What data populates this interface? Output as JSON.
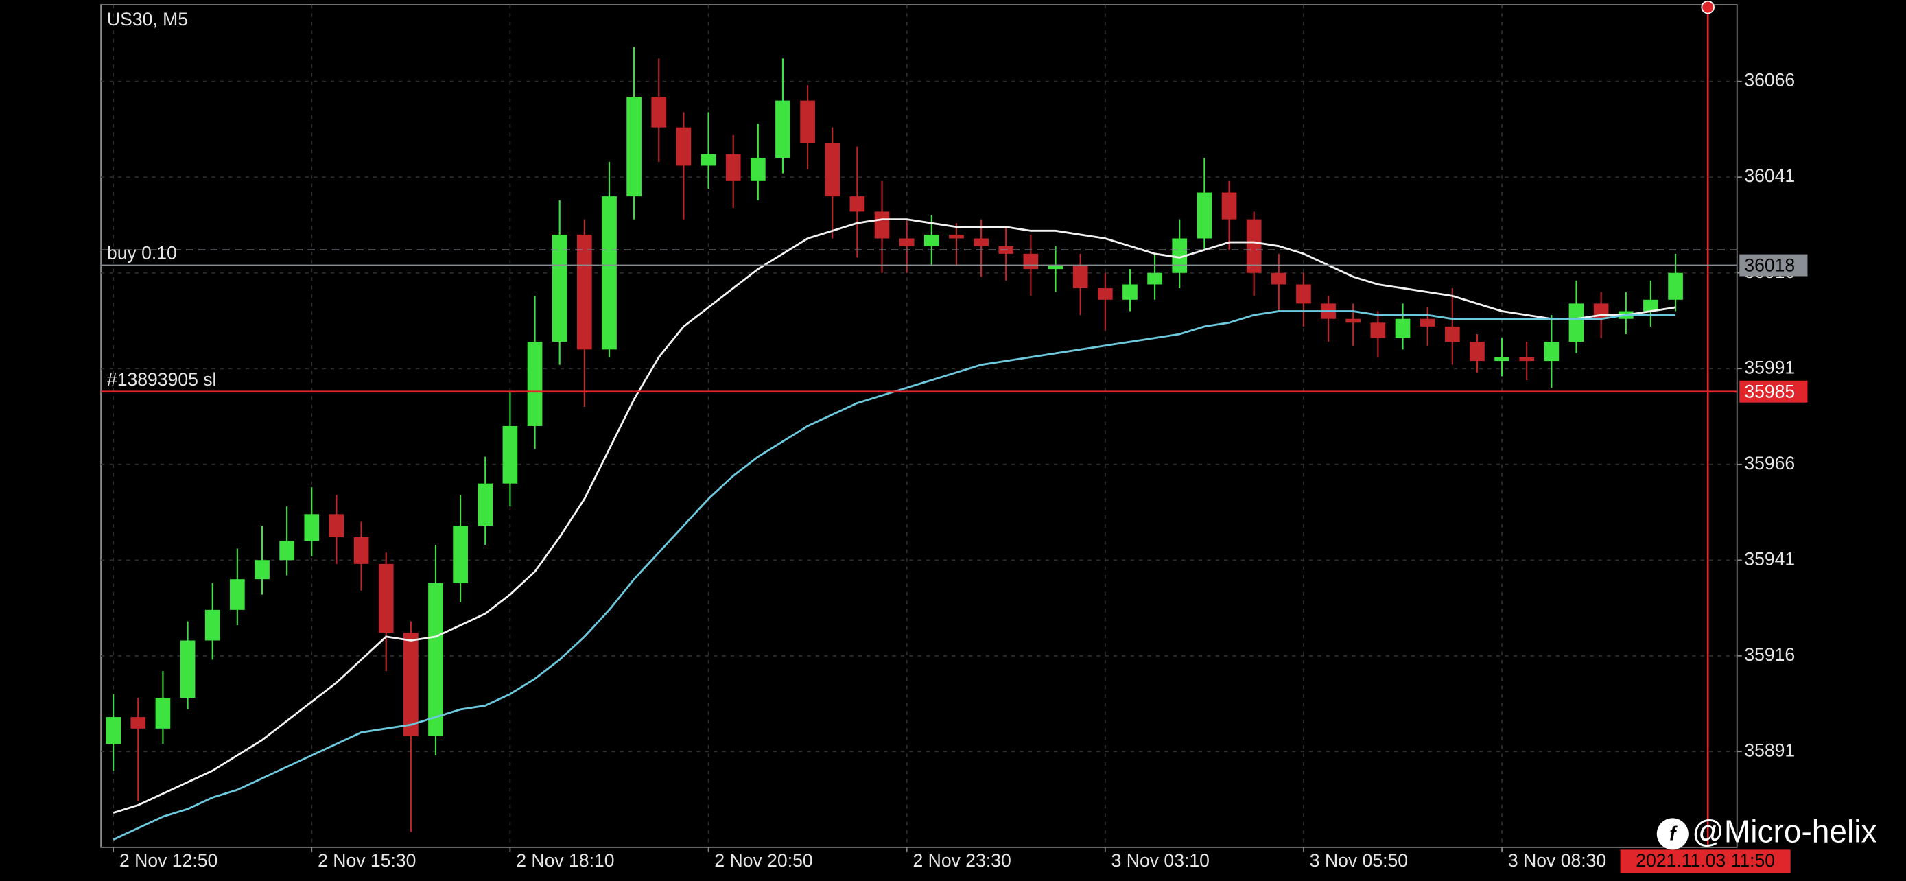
{
  "chart_data": {
    "type": "candlestick",
    "title": "US30, M5",
    "categories": [
      "2 Nov 12:50",
      null,
      null,
      null,
      null,
      null,
      null,
      null,
      "2 Nov 15:30",
      null,
      null,
      null,
      null,
      null,
      null,
      null,
      "2 Nov 18:10",
      null,
      null,
      null,
      null,
      null,
      null,
      null,
      "2 Nov 20:50",
      null,
      null,
      null,
      null,
      null,
      null,
      null,
      "2 Nov 23:30",
      null,
      null,
      null,
      null,
      null,
      null,
      null,
      "3 Nov 03:10",
      null,
      null,
      null,
      null,
      null,
      null,
      null,
      "3 Nov 05:50",
      null,
      null,
      null,
      null,
      null,
      null,
      null,
      "3 Nov 08:30",
      null,
      null,
      null,
      null,
      null,
      null,
      null
    ],
    "open": [
      35893,
      35900,
      35897,
      35905,
      35920,
      35928,
      35936,
      35941,
      35946,
      35953,
      35947,
      35940,
      35922,
      35895,
      35935,
      35950,
      35961,
      35976,
      35998,
      36026,
      35996,
      36036,
      36062,
      36054,
      36044,
      36047,
      36040,
      36046,
      36061,
      36050,
      36036,
      36032,
      36025,
      36023,
      36026,
      36025,
      36023,
      36021,
      36017,
      36018,
      36012,
      36009,
      36013,
      36016,
      36025,
      36037,
      36030,
      36016,
      36013,
      36008,
      36004,
      36003,
      35999,
      36004,
      36002,
      35998,
      35993,
      35994,
      35993,
      35998,
      36008,
      36004,
      36006,
      36009
    ],
    "high": [
      35906,
      35905,
      35912,
      35925,
      35935,
      35944,
      35950,
      35955,
      35960,
      35958,
      35951,
      35943,
      35925,
      35945,
      35958,
      35968,
      35985,
      36010,
      36035,
      36030,
      36045,
      36075,
      36072,
      36058,
      36058,
      36052,
      36055,
      36072,
      36065,
      36054,
      36049,
      36040,
      36030,
      36031,
      36029,
      36030,
      36028,
      36026,
      36023,
      36021,
      36016,
      36017,
      36021,
      36030,
      36046,
      36040,
      36032,
      36021,
      36016,
      36010,
      36008,
      36006,
      36008,
      36007,
      36012,
      36000,
      35999,
      35998,
      36005,
      36014,
      36011,
      36011,
      36014,
      36021
    ],
    "low": [
      35886,
      35878,
      35893,
      35902,
      35915,
      35924,
      35932,
      35937,
      35942,
      35940,
      35933,
      35912,
      35870,
      35890,
      35930,
      35945,
      35955,
      35970,
      35992,
      35981,
      35994,
      36030,
      36045,
      36030,
      36038,
      36033,
      36035,
      36042,
      36043,
      36025,
      36020,
      36016,
      36016,
      36018,
      36018,
      36015,
      36014,
      36010,
      36011,
      36005,
      36001,
      36006,
      36009,
      36012,
      36022,
      36022,
      36010,
      36006,
      36002,
      35998,
      35997,
      35994,
      35996,
      35997,
      35992,
      35990,
      35989,
      35988,
      35986,
      35995,
      35999,
      36000,
      36002,
      36006
    ],
    "close": [
      35900,
      35897,
      35905,
      35920,
      35928,
      35936,
      35941,
      35946,
      35953,
      35947,
      35940,
      35922,
      35895,
      35935,
      35950,
      35961,
      35976,
      35998,
      36026,
      35996,
      36036,
      36062,
      36054,
      36044,
      36047,
      36040,
      36046,
      36061,
      36050,
      36036,
      36032,
      36025,
      36023,
      36026,
      36025,
      36023,
      36021,
      36017,
      36018,
      36012,
      36009,
      36013,
      36016,
      36025,
      36037,
      36030,
      36016,
      36013,
      36008,
      36004,
      36003,
      35999,
      36004,
      36002,
      35998,
      35993,
      35994,
      35993,
      35998,
      36008,
      36004,
      36006,
      36009,
      36016
    ],
    "up_color": "#3fe33f",
    "down_color": "#c0262a",
    "series": [
      {
        "color": "#f2f2f2",
        "values": [
          35875,
          35877,
          35880,
          35883,
          35886,
          35890,
          35894,
          35899,
          35904,
          35909,
          35915,
          35921,
          35920,
          35921,
          35924,
          35927,
          35932,
          35938,
          35947,
          35957,
          35970,
          35983,
          35994,
          36002,
          36007,
          36012,
          36017,
          36021,
          36025,
          36027,
          36029,
          36030,
          36030,
          36029,
          36028,
          36028,
          36028,
          36027,
          36027,
          36026,
          36025,
          36023,
          36021,
          36020,
          36022,
          36024,
          36024,
          36023,
          36021,
          36018,
          36015,
          36013,
          36012,
          36011,
          36010,
          36008,
          36006,
          36005,
          36004,
          36004,
          36005,
          36005,
          36006,
          36007
        ]
      },
      {
        "color": "#6cc9dd",
        "values": [
          35868,
          35871,
          35874,
          35876,
          35879,
          35881,
          35884,
          35887,
          35890,
          35893,
          35896,
          35897,
          35898,
          35900,
          35902,
          35903,
          35906,
          35910,
          35915,
          35921,
          35928,
          35936,
          35943,
          35950,
          35957,
          35963,
          35968,
          35972,
          35976,
          35979,
          35982,
          35984,
          35986,
          35988,
          35990,
          35992,
          35993,
          35994,
          35995,
          35996,
          35997,
          35998,
          35999,
          36000,
          36002,
          36003,
          36005,
          36006,
          36006,
          36006,
          36006,
          36005,
          36005,
          36005,
          36004,
          36004,
          36004,
          36004,
          36004,
          36004,
          36004,
          36005,
          36005,
          36005
        ]
      }
    ],
    "levels": [
      {
        "name": "buy 0.10",
        "value": 36018,
        "color": "#8a8f96"
      },
      {
        "name": "#13893905 sl",
        "value": 35985,
        "color": "#e0262a"
      }
    ],
    "ask": 36022,
    "ylim": [
      35866,
      36086
    ],
    "yticks": [
      36066,
      36041,
      36016,
      35991,
      35966,
      35941,
      35916,
      35891
    ],
    "grid": true,
    "time_label": "2021.11.03 11:50",
    "watermark": "@Micro-helix"
  }
}
